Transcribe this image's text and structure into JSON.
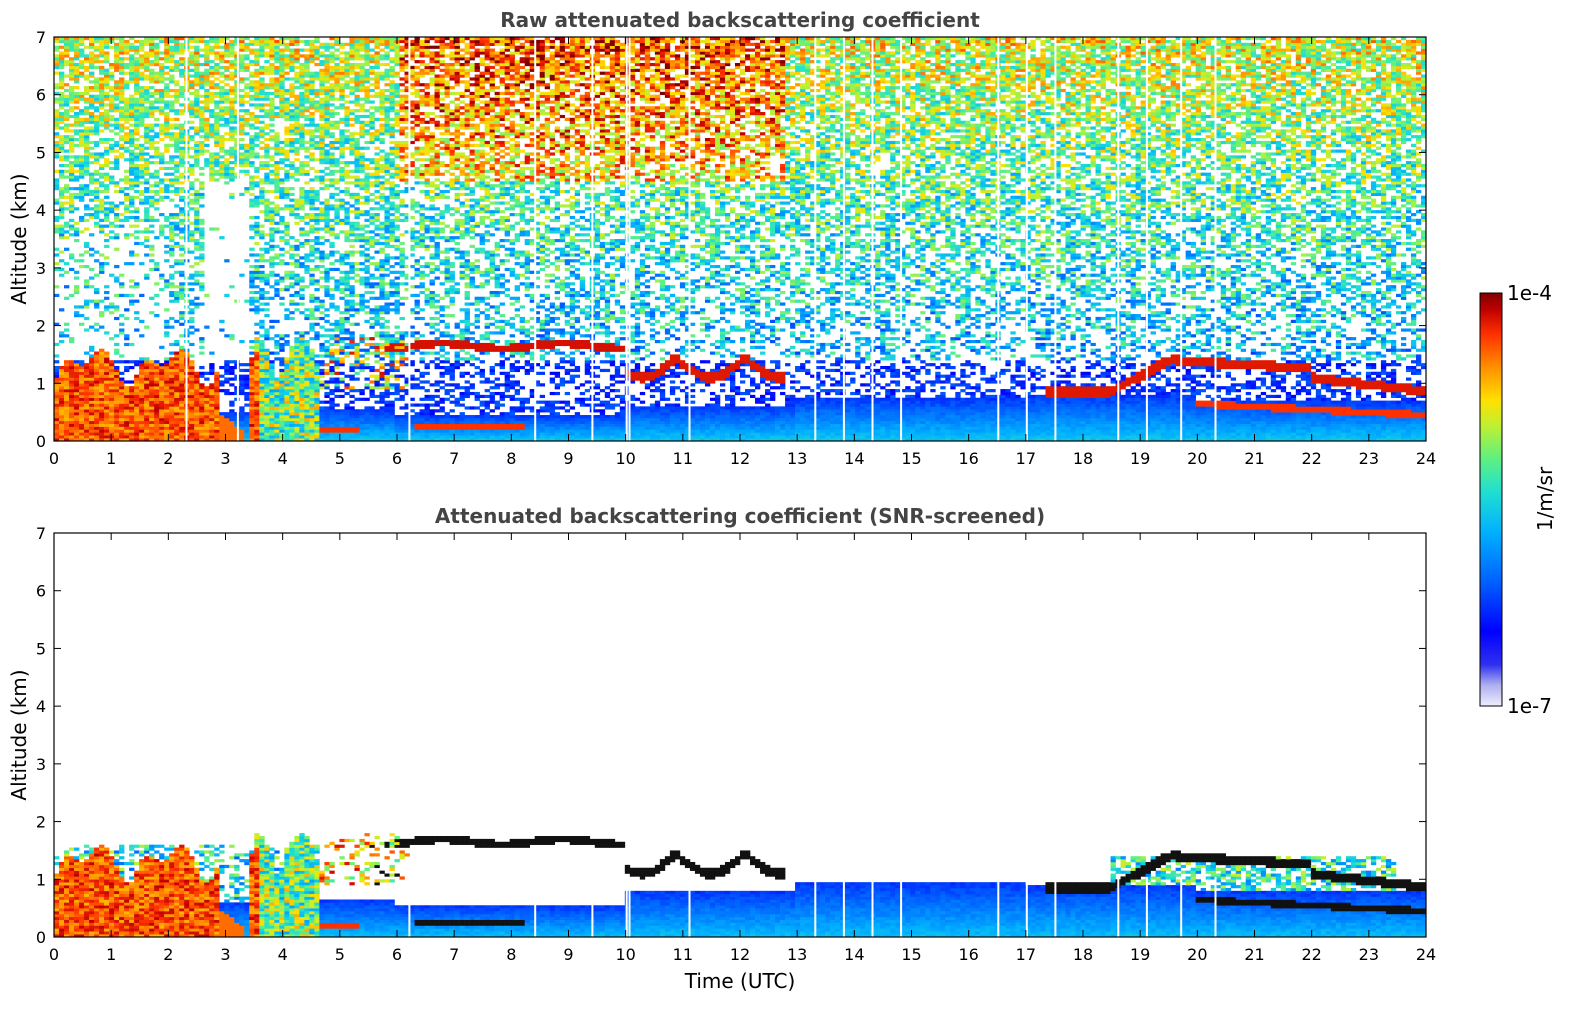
{
  "chart_data": [
    {
      "type": "heatmap",
      "title": "Raw attenuated backscattering coefficient",
      "xlabel": "",
      "ylabel": "Altitude (km)",
      "xlim": [
        0,
        24
      ],
      "ylim": [
        0,
        7
      ],
      "x_ticks": [
        "0",
        "1",
        "2",
        "3",
        "4",
        "5",
        "6",
        "7",
        "8",
        "9",
        "10",
        "11",
        "12",
        "13",
        "14",
        "15",
        "16",
        "17",
        "18",
        "19",
        "20",
        "21",
        "22",
        "23",
        "24"
      ],
      "y_ticks": [
        "0",
        "1",
        "2",
        "3",
        "4",
        "5",
        "6",
        "7"
      ],
      "features": [
        {
          "name": "dense low cloud",
          "t_start": 0,
          "t_end": 3.5,
          "alt_top_km": 1.6
        },
        {
          "name": "cloud layer ~1.7 km",
          "t_start": 6,
          "t_end": 10,
          "alt_km": 1.65
        },
        {
          "name": "broken cloud 10-12.8 UTC",
          "t_start": 10,
          "t_end": 12.8,
          "alt_km": 1.3
        },
        {
          "name": "cloud layer 17.3-24 UTC",
          "t_start": 17.3,
          "t_end": 24,
          "alt_km": 1.0
        },
        {
          "name": "boundary layer aerosol",
          "t_start": 4.5,
          "t_end": 24,
          "alt_top_km": 0.6
        }
      ]
    },
    {
      "type": "heatmap",
      "title": "Attenuated backscattering coefficient (SNR-screened)",
      "xlabel": "Time (UTC)",
      "ylabel": "Altitude (km)",
      "xlim": [
        0,
        24
      ],
      "ylim": [
        0,
        7
      ],
      "x_ticks": [
        "0",
        "1",
        "2",
        "3",
        "4",
        "5",
        "6",
        "7",
        "8",
        "9",
        "10",
        "11",
        "12",
        "13",
        "14",
        "15",
        "16",
        "17",
        "18",
        "19",
        "20",
        "21",
        "22",
        "23",
        "24"
      ],
      "y_ticks": [
        "0",
        "1",
        "2",
        "3",
        "4",
        "5",
        "6",
        "7"
      ]
    }
  ],
  "colorbar": {
    "max_label": "1e-4",
    "min_label": "1e-7",
    "unit_label": "1/m/sr",
    "colors": [
      "#eeeeff",
      "#c8c8f5",
      "#a0a0f0",
      "#5050f5",
      "#0000ff",
      "#0040ff",
      "#0080ff",
      "#00c0ff",
      "#20e0e0",
      "#40f0a0",
      "#90f060",
      "#d0f020",
      "#ffe000",
      "#ffa000",
      "#ff6000",
      "#ff2000",
      "#d00000",
      "#800000"
    ]
  }
}
